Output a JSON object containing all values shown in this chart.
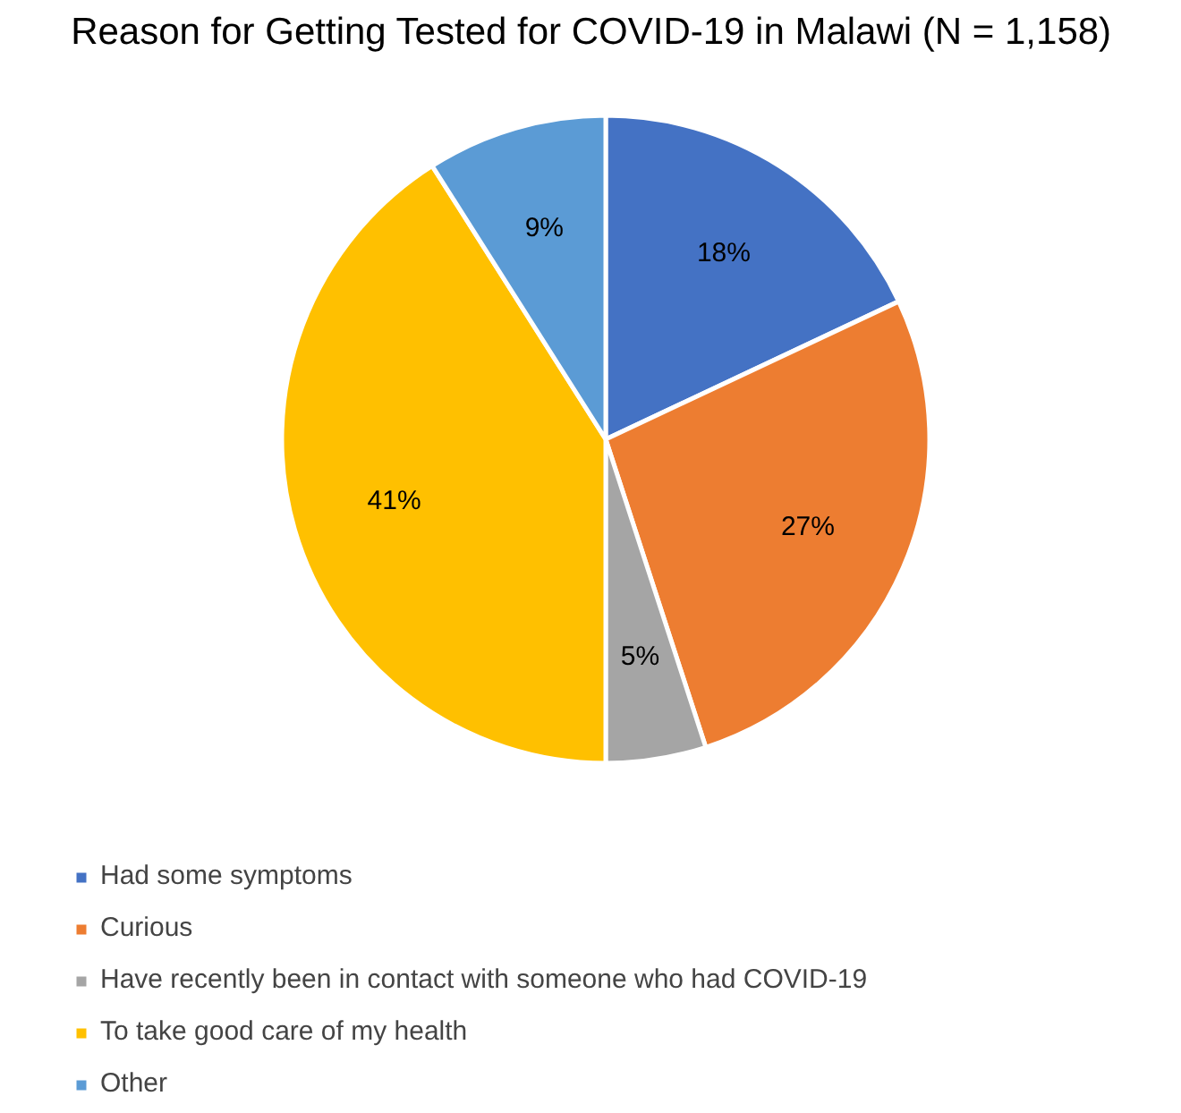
{
  "chart_data": {
    "type": "pie",
    "title": "Reason for Getting Tested for COVID-19 in Malawi (N = 1,158)",
    "categories": [
      "Had some symptoms",
      "Curious",
      "Have recently been in contact with someone who had COVID-19",
      "To take good care of my health",
      "Other"
    ],
    "values": [
      18,
      27,
      5,
      41,
      9
    ],
    "colors": [
      "#4472c4",
      "#ed7d31",
      "#a5a5a5",
      "#ffc000",
      "#5b9bd5"
    ],
    "value_labels": [
      "18%",
      "27%",
      "5%",
      "41%",
      "9%"
    ],
    "legend": "bottom"
  }
}
